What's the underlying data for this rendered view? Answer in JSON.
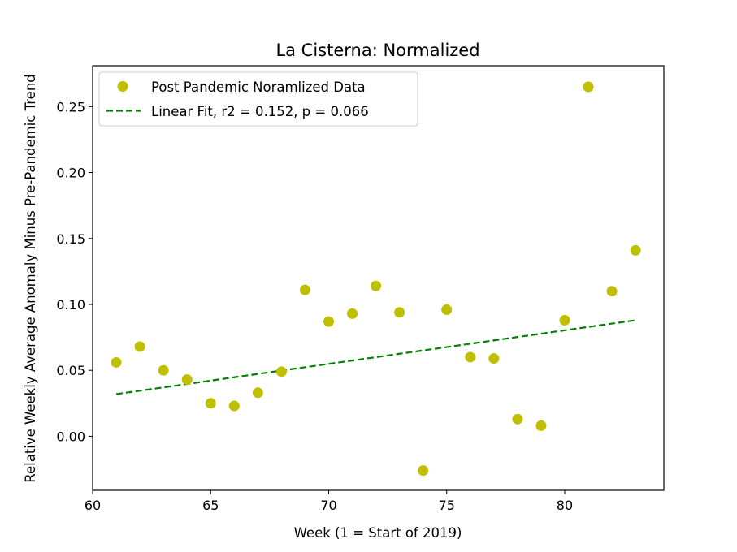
{
  "chart_data": {
    "type": "scatter",
    "title": "La Cisterna: Normalized",
    "xlabel": "Week (1 = Start of 2019)",
    "ylabel": "Relative Weekly Average Anomaly Minus Pre-Pandemic Trend",
    "xlim": [
      60,
      84.2
    ],
    "ylim": [
      -0.041,
      0.281
    ],
    "xticks": [
      60,
      65,
      70,
      75,
      80
    ],
    "yticks": [
      0.0,
      0.05,
      0.1,
      0.15,
      0.2,
      0.25
    ],
    "xtick_labels": [
      "60",
      "65",
      "70",
      "75",
      "80"
    ],
    "ytick_labels": [
      "0.00",
      "0.05",
      "0.10",
      "0.15",
      "0.20",
      "0.25"
    ],
    "grid": false,
    "legend_position": "top-left",
    "series": [
      {
        "name": "Post Pandemic Noramlized Data",
        "kind": "scatter",
        "color": "#bfbf00",
        "x": [
          61,
          62,
          63,
          64,
          65,
          66,
          67,
          68,
          69,
          70,
          71,
          72,
          73,
          74,
          75,
          76,
          77,
          78,
          79,
          80,
          81,
          82,
          83
        ],
        "y": [
          0.056,
          0.068,
          0.05,
          0.043,
          0.025,
          0.023,
          0.033,
          0.049,
          0.111,
          0.087,
          0.093,
          0.114,
          0.094,
          -0.026,
          0.096,
          0.06,
          0.059,
          0.013,
          0.008,
          0.088,
          0.265,
          0.11,
          0.141
        ]
      },
      {
        "name": "Linear Fit, r2 = 0.152, p = 0.066",
        "kind": "line",
        "style": "dashed",
        "color": "#008000",
        "x": [
          61,
          83
        ],
        "y": [
          0.032,
          0.088
        ]
      }
    ]
  }
}
